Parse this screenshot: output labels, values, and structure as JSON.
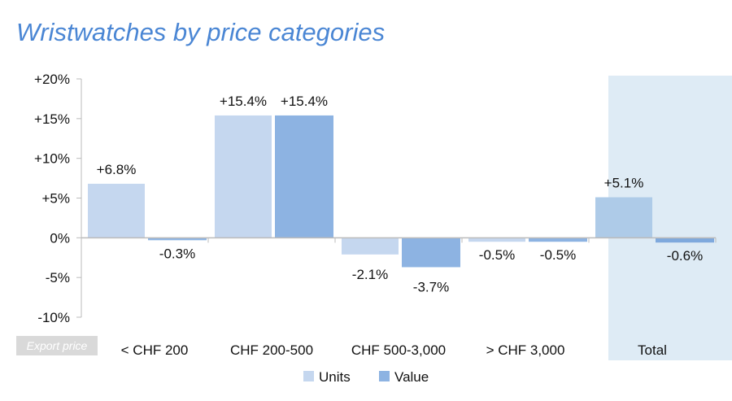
{
  "chart_data": {
    "type": "bar",
    "title": "Wristwatches by price categories",
    "categories": [
      "< CHF 200",
      "CHF 200-500",
      "CHF 500-3,000",
      "> CHF 3,000",
      "Total"
    ],
    "series": [
      {
        "name": "Units",
        "values": [
          6.8,
          15.4,
          -2.1,
          -0.5,
          5.1
        ],
        "labels": [
          "+6.8%",
          "+15.4%",
          "-2.1%",
          "-0.5%",
          "+5.1%"
        ],
        "color": "#c5d7ef"
      },
      {
        "name": "Value",
        "values": [
          -0.3,
          15.4,
          -3.7,
          -0.5,
          -0.6
        ],
        "labels": [
          "-0.3%",
          "+15.4%",
          "-3.7%",
          "-0.5%",
          "-0.6%"
        ],
        "color": "#8db3e2"
      }
    ],
    "highlight_category": "Total",
    "highlight_colors": {
      "bg": "#deebf5",
      "units": "#aecbe8",
      "value": "#7fa9dd"
    },
    "ylim": [
      -10,
      20
    ],
    "yticks": [
      20,
      15,
      10,
      5,
      0,
      -5,
      -10
    ],
    "ytick_labels": [
      "+20%",
      "+15%",
      "+10%",
      "+5%",
      "0%",
      "-5%",
      "-10%"
    ],
    "xlabel": "Export price",
    "legend": "bottom"
  }
}
